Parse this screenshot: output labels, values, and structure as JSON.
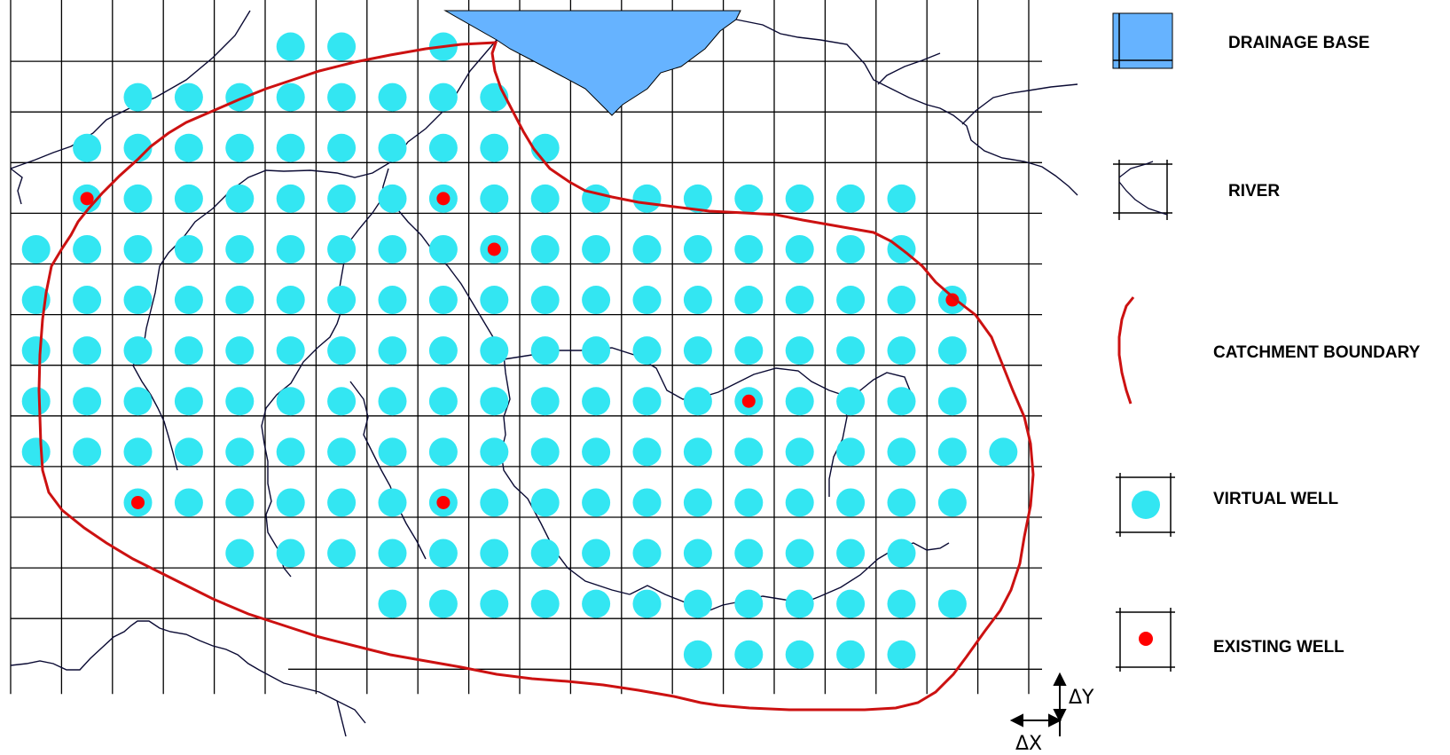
{
  "colors": {
    "drainage_base": "#66b3ff",
    "river": "#0a0a33",
    "catchment_boundary": "#cc1111",
    "virtual_well": "#33e6f2",
    "existing_well": "#ff0000",
    "grid": "#000000"
  },
  "legend": {
    "drainage_base": {
      "label": "DRAINAGE BASE",
      "icon": "drainage-base-swatch"
    },
    "river": {
      "label": "RIVER",
      "icon": "river-line-icon"
    },
    "catchment_boundary": {
      "label": "CATCHMENT BOUNDARY",
      "icon": "boundary-curve-icon"
    },
    "virtual_well": {
      "label": "VIRTUAL WELL",
      "icon": "cyan-dot-icon"
    },
    "existing_well": {
      "label": "EXISTING WELL",
      "icon": "red-dot-icon"
    }
  },
  "spacing_labels": {
    "dx": "ΔX",
    "dy": "ΔY"
  },
  "wells": {
    "virtual_per_row": [
      {
        "row": 1,
        "cols": [
          6,
          7,
          9
        ]
      },
      {
        "row": 2,
        "cols": [
          3,
          4,
          5,
          6,
          7,
          8,
          9,
          10
        ]
      },
      {
        "row": 3,
        "cols": [
          2,
          3,
          4,
          5,
          6,
          7,
          8,
          9,
          10,
          11
        ]
      },
      {
        "row": 4,
        "cols": [
          2,
          3,
          4,
          5,
          6,
          7,
          8,
          9,
          10,
          11,
          12,
          13,
          14,
          15,
          16,
          17,
          18
        ]
      },
      {
        "row": 5,
        "cols": [
          1,
          2,
          3,
          4,
          5,
          6,
          7,
          8,
          9,
          10,
          11,
          12,
          13,
          14,
          15,
          16,
          17,
          18
        ]
      },
      {
        "row": 6,
        "cols": [
          1,
          2,
          3,
          4,
          5,
          6,
          7,
          8,
          9,
          10,
          11,
          12,
          13,
          14,
          15,
          16,
          17,
          18,
          19
        ]
      },
      {
        "row": 7,
        "cols": [
          1,
          2,
          3,
          4,
          5,
          6,
          7,
          8,
          9,
          10,
          11,
          12,
          13,
          14,
          15,
          16,
          17,
          18,
          19
        ]
      },
      {
        "row": 8,
        "cols": [
          1,
          2,
          3,
          4,
          5,
          6,
          7,
          8,
          9,
          10,
          11,
          12,
          13,
          14,
          15,
          16,
          17,
          18,
          19
        ]
      },
      {
        "row": 9,
        "cols": [
          1,
          2,
          3,
          4,
          5,
          6,
          7,
          8,
          9,
          10,
          11,
          12,
          13,
          14,
          15,
          16,
          17,
          18,
          19,
          20
        ]
      },
      {
        "row": 10,
        "cols": [
          3,
          4,
          5,
          6,
          7,
          8,
          9,
          10,
          11,
          12,
          13,
          14,
          15,
          16,
          17,
          18,
          19
        ]
      },
      {
        "row": 11,
        "cols": [
          5,
          6,
          7,
          8,
          9,
          10,
          11,
          12,
          13,
          14,
          15,
          16,
          17,
          18
        ]
      },
      {
        "row": 12,
        "cols": [
          8,
          9,
          10,
          11,
          12,
          13,
          14,
          15,
          16,
          17,
          18,
          19
        ]
      },
      {
        "row": 13,
        "cols": [
          14,
          15,
          16,
          17,
          18
        ]
      }
    ],
    "existing": [
      {
        "row": 4,
        "col": 2
      },
      {
        "row": 4,
        "col": 9
      },
      {
        "row": 5,
        "col": 10
      },
      {
        "row": 6,
        "col": 19
      },
      {
        "row": 8,
        "col": 15
      },
      {
        "row": 10,
        "col": 3
      },
      {
        "row": 10,
        "col": 9
      }
    ]
  }
}
